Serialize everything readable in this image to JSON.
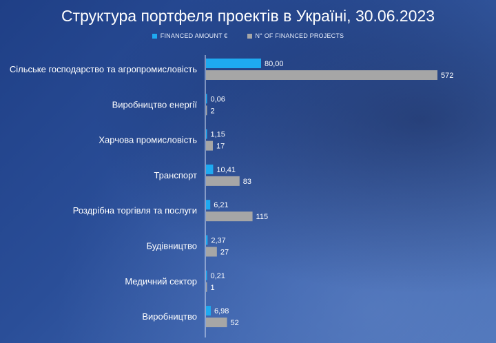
{
  "chart_data": {
    "type": "bar",
    "orientation": "horizontal",
    "title": "Структура портфеля проектів в Україні, 30.06.2023",
    "categories": [
      "Сільське господарство та агропромисловість",
      "Виробництво енергії",
      "Харчова промисловість",
      "Транспорт",
      "Роздрібна торгівля та послуги",
      "Будівництво",
      "Медичний сектор",
      "Виробництво"
    ],
    "series": [
      {
        "name": "FINANCED AMOUNT €",
        "color": "#1eaaf1",
        "values": [
          80.0,
          0.06,
          1.15,
          10.41,
          6.21,
          2.37,
          0.21,
          6.98
        ],
        "labels": [
          "80,00",
          "0,06",
          "1,15",
          "10,41",
          "6,21",
          "2,37",
          "0,21",
          "6,98"
        ]
      },
      {
        "name": "N° OF FINANCED PROJECTS",
        "color": "#a6a6a6",
        "values": [
          572,
          2,
          17,
          83,
          115,
          27,
          1,
          52
        ],
        "labels": [
          "572",
          "2",
          "17",
          "83",
          "115",
          "27",
          "1",
          "52"
        ]
      }
    ],
    "legend_position": "top",
    "grid": false
  }
}
